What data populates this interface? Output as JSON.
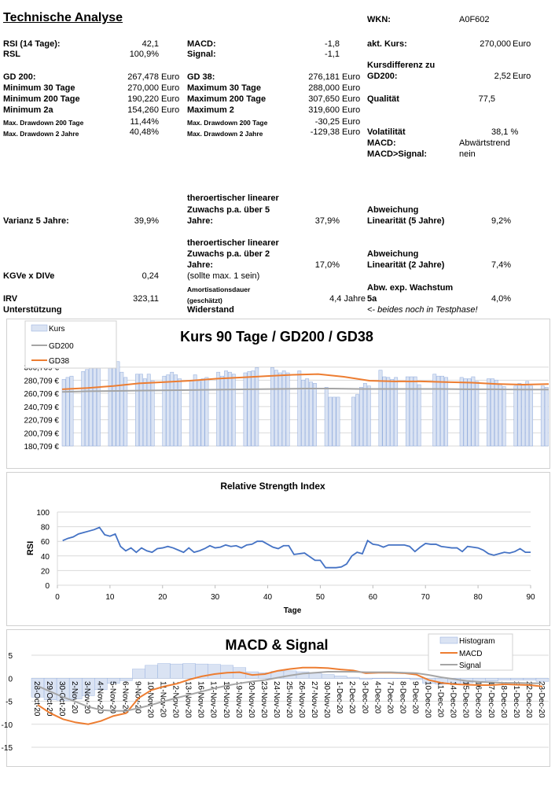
{
  "title": "Technische Analyse",
  "table": {
    "rsi_label": "RSI (14 Tage):",
    "rsi": "42,1",
    "rsl_label": "RSL",
    "rsl": "100,9%",
    "macd_label": "MACD:",
    "macd": "-1,8",
    "signal_label": "Signal:",
    "signal": "-1,1",
    "wkn_label": "WKN:",
    "wkn": "A0F602",
    "kurs_label": "akt. Kurs:",
    "kurs": "270,000",
    "kursdiff_label1": "Kursdifferenz zu",
    "kursdiff_label2": "GD200:",
    "kursdiff": "2,52",
    "qualitaet_label": "Qualität",
    "qualitaet": "77,5",
    "vola_label": "Volatilität",
    "vola": "38,1 %",
    "macd_trend_label": "MACD:",
    "macd_trend": "Abwärtstrend",
    "macd_sig_label": "MACD>Signal:",
    "macd_sig": "nein",
    "gd200_label": "GD 200:",
    "gd200": "267,478",
    "min30_label": "Minimum 30 Tage",
    "min30": "270,000",
    "min200_label": "Minimum 200 Tage",
    "min200": "190,220",
    "min2a_label": "Minimum 2a",
    "min2a": "154,260",
    "dd200_label": "Max. Drawdown 200 Tage",
    "dd200": "11,44%",
    "dd2_label": "Max. Drawdown 2 Jahre",
    "dd2": "40,48%",
    "gd38_label": "GD 38:",
    "gd38": "276,181",
    "max30_label": "Maximum 30 Tage",
    "max30": "288,000",
    "max200_label": "Maximum 200 Tage",
    "max200": "307,650",
    "max2_label": "Maximum 2",
    "max2": "319,600",
    "dd200e_label": "Max. Drawdown 200 Tage",
    "dd200e": "-30,25",
    "dd2e_label": "Max. Drawdown 2 Jahre",
    "dd2e": "-129,38",
    "euro": "Euro",
    "varianz_label": "Varianz 5 Jahre:",
    "varianz": "39,9%",
    "zuw5_l1": "theroertischer linearer",
    "zuw5_l2": "Zuwachs p.a. über 5",
    "zuw5_l3": "Jahre:",
    "zuw5": "37,9%",
    "abw5_l1": "Abweichung",
    "abw5_l2": "Linearität (5 Jahre)",
    "abw5": "9,2%",
    "zuw2_l1": "theroertischer linearer",
    "zuw2_l2": "Zuwachs p.a. über 2",
    "zuw2_l3": "Jahre:",
    "zuw2": "17,0%",
    "abw2_l1": "Abweichung",
    "abw2_l2": "Linearität (2 Jahre)",
    "abw2": "7,4%",
    "kgve_label": "KGVe x DIVe",
    "kgve": "0,24",
    "kgve_note": "(sollte max. 1 sein)",
    "amort_l1": "Amortisationsdauer",
    "amort_l2": "(geschätzt)",
    "amort": "4,4 Jahre",
    "abwexp_l1": "Abw. exp. Wachstum",
    "abwexp_l2": "5a",
    "abwexp": "4,0%",
    "irv_label": "IRV",
    "irv": "323,11",
    "unterstuetzung_label": "Unterstützung",
    "widerstand_label": "Widerstand",
    "test_note": "<- beides noch in Testphase!"
  },
  "colors": {
    "bar_fill": "#dae3f3",
    "bar_stroke": "#8faadc",
    "orange": "#ed7d31",
    "gray": "#a5a5a5",
    "blue": "#4472c4",
    "grid": "#d9d9d9"
  },
  "chart_data": [
    {
      "type": "bar",
      "title": "Kurs 90 Tage / GD200 / GD38",
      "legend": [
        "Kurs",
        "GD200",
        "GD38"
      ],
      "legend_position": "top-left",
      "yticks": [
        "180,709 €",
        "200,709 €",
        "220,709 €",
        "240,709 €",
        "260,709 €",
        "280,709 €",
        "300,709 €"
      ],
      "ylim": [
        180.709,
        320.709
      ],
      "kurs": [
        282,
        285,
        287,
        null,
        null,
        294,
        297,
        301,
        305,
        312,
        null,
        null,
        305,
        304,
        309,
        293,
        285,
        null,
        null,
        290,
        290,
        283,
        290,
        280,
        null,
        null,
        287,
        289,
        293,
        289,
        283,
        null,
        null,
        281,
        289,
        279,
        283,
        285,
        null,
        null,
        293,
        287,
        295,
        293,
        290,
        null,
        null,
        292,
        294,
        295,
        300,
        null,
        null,
        null,
        300,
        296,
        292,
        295,
        292,
        null,
        null,
        295,
        281,
        283,
        278,
        276,
        null,
        null,
        270,
        255,
        255,
        255,
        null,
        null,
        null,
        255,
        259,
        270,
        276,
        272,
        null,
        null,
        296,
        286,
        285,
        282,
        285,
        null,
        null,
        286,
        286,
        286,
        274,
        null,
        null,
        null,
        290,
        287,
        287,
        285,
        null,
        null,
        null,
        285,
        283,
        283,
        286,
        279,
        null,
        null,
        283,
        283,
        281,
        274,
        271,
        null,
        null,
        272,
        276,
        275,
        279,
        272,
        null,
        null,
        272,
        270
      ],
      "gd200": [
        263,
        264,
        264.5,
        265,
        265.5,
        266,
        266.5,
        267,
        267.5,
        268,
        268,
        267.5,
        267.5,
        267.5,
        267.5,
        267,
        267,
        266.5,
        266.5
      ],
      "gd38": [
        267,
        269,
        272,
        276,
        278,
        280,
        283,
        285,
        287,
        289,
        290,
        286,
        280,
        279,
        279,
        278,
        277,
        275,
        274,
        275
      ]
    },
    {
      "type": "line",
      "title": "Relative Strength Index",
      "xlabel": "Tage",
      "ylabel": "RSI",
      "xlim": [
        0,
        90
      ],
      "ylim": [
        0,
        100
      ],
      "xticks": [
        0,
        10,
        20,
        30,
        40,
        50,
        60,
        70,
        80,
        90
      ],
      "yticks": [
        0,
        20,
        40,
        60,
        80,
        100
      ],
      "y": [
        61,
        64,
        66,
        70,
        72,
        74,
        76,
        79,
        69,
        67,
        70,
        53,
        47,
        51,
        45,
        51,
        47,
        45,
        50,
        51,
        53,
        51,
        48,
        45,
        51,
        45,
        47,
        50,
        54,
        51,
        52,
        55,
        53,
        54,
        51,
        55,
        56,
        60,
        60,
        56,
        52,
        50,
        54,
        54,
        42,
        43,
        44,
        39,
        34,
        34,
        24,
        24,
        24,
        25,
        29,
        40,
        45,
        43,
        61,
        56,
        55,
        52,
        55,
        55,
        55,
        55,
        53,
        46,
        52,
        57,
        56,
        56,
        53,
        52,
        51,
        51,
        46,
        53,
        52,
        51,
        48,
        43,
        41,
        43,
        45,
        44,
        46,
        50,
        45,
        45
      ]
    },
    {
      "type": "bar",
      "title": "MACD & Signal",
      "legend": [
        "Histogram",
        "MACD",
        "Signal"
      ],
      "legend_position": "top-right",
      "ylim": [
        -15,
        5
      ],
      "yticks": [
        -15,
        -10,
        -5,
        0,
        5
      ],
      "categories": [
        "28-Oct-20",
        "29-Oct-20",
        "30-Oct-20",
        "2-Nov-20",
        "3-Nov-20",
        "4-Nov-20",
        "5-Nov-20",
        "6-Nov-20",
        "9-Nov-20",
        "10-Nov-20",
        "11-Nov-20",
        "12-Nov-20",
        "13-Nov-20",
        "16-Nov-20",
        "17-Nov-20",
        "18-Nov-20",
        "19-Nov-20",
        "20-Nov-20",
        "23-Nov-20",
        "24-Nov-20",
        "25-Nov-20",
        "26-Nov-20",
        "27-Nov-20",
        "30-Nov-20",
        "1-Dec-20",
        "2-Dec-20",
        "3-Dec-20",
        "4-Dec-20",
        "7-Dec-20",
        "8-Dec-20",
        "9-Dec-20",
        "10-Dec-20",
        "11-Dec-20",
        "14-Dec-20",
        "15-Dec-20",
        "16-Dec-20",
        "17-Dec-20",
        "18-Dec-20",
        "21-Dec-20",
        "22-Dec-20",
        "23-Dec-20"
      ],
      "histogram": [
        -4.1,
        -4.7,
        -4.8,
        -4.5,
        -3.8,
        -2.5,
        -1.1,
        -0.5,
        2.0,
        2.8,
        3.2,
        3.1,
        3.2,
        3.1,
        3.0,
        2.8,
        2.3,
        1.4,
        1.2,
        1.5,
        1.6,
        1.4,
        1.1,
        0.8,
        0.5,
        0.2,
        -0.2,
        -0.1,
        -0.1,
        -0.1,
        -0.3,
        -1.1,
        -1.3,
        -1.2,
        -1.0,
        -0.8,
        -0.6,
        -0.4,
        -0.4,
        -0.4,
        -0.7
      ],
      "macd": [
        -5.8,
        -7.6,
        -8.9,
        -9.6,
        -10,
        -9.3,
        -8.2,
        -7.6,
        -4.3,
        -2.6,
        -1.8,
        -1.2,
        -0.3,
        0.4,
        0.9,
        1.2,
        1.3,
        0.7,
        0.9,
        1.6,
        2.0,
        2.3,
        2.3,
        2.2,
        1.9,
        1.7,
        1.1,
        1.2,
        1.2,
        1.1,
        0.8,
        -0.4,
        -1.0,
        -1.3,
        -1.4,
        -1.5,
        -1.5,
        -1.3,
        -1.4,
        -1.5,
        -1.8
      ],
      "signal": [
        -1.7,
        -2.9,
        -4.1,
        -5.1,
        -6.2,
        -6.9,
        -7.1,
        -7.1,
        -6.5,
        -5.8,
        -5.0,
        -4.3,
        -3.6,
        -2.9,
        -2.2,
        -1.6,
        -1.1,
        -0.7,
        -0.4,
        0.1,
        0.6,
        1.0,
        1.2,
        1.4,
        1.4,
        1.4,
        1.3,
        1.3,
        1.3,
        1.2,
        1.1,
        0.7,
        0.2,
        -0.2,
        -0.6,
        -0.8,
        -0.9,
        -1.0,
        -1.0,
        -1.1,
        -1.1
      ]
    }
  ]
}
